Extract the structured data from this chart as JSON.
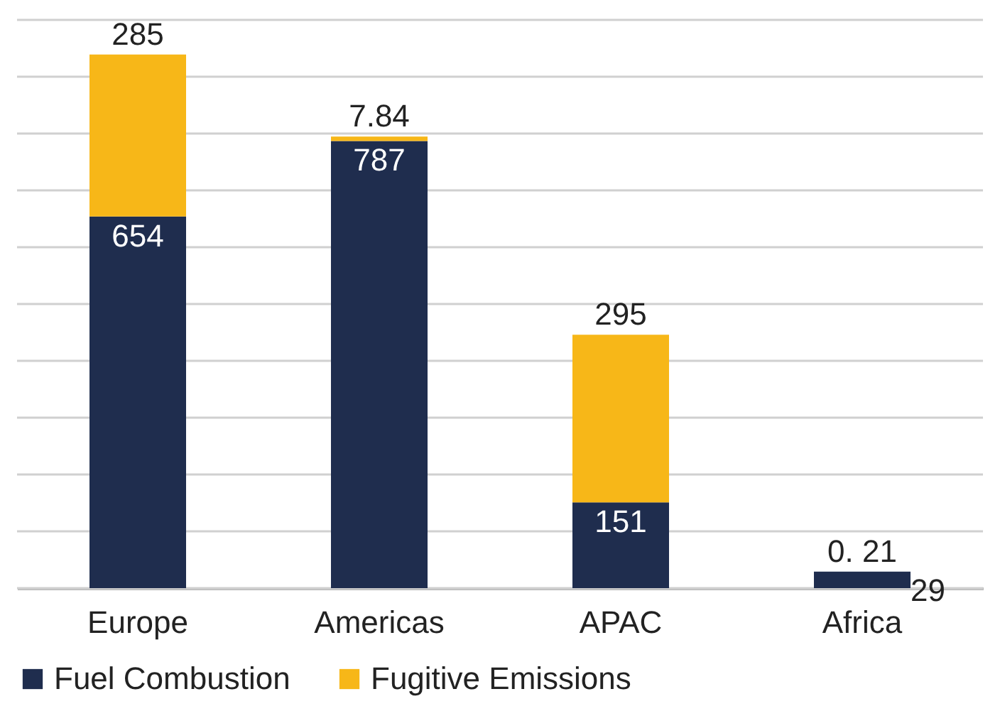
{
  "chart_data": {
    "type": "bar",
    "stacked": true,
    "categories": [
      "Europe",
      "Americas",
      "APAC",
      "Africa"
    ],
    "series": [
      {
        "name": "Fuel Combustion",
        "color": "#1f2d4e",
        "values": [
          654,
          787,
          151,
          29
        ],
        "value_labels": [
          "654",
          "787",
          "151",
          "29"
        ]
      },
      {
        "name": "Fugitive Emissions",
        "color": "#f7b718",
        "values": [
          285,
          7.84,
          295,
          0.21
        ],
        "value_labels": [
          "285",
          "7.84",
          "295",
          "0. 21"
        ]
      }
    ],
    "ylim": [
      0,
      1000
    ],
    "yticks": [
      {
        "value": 0,
        "label": null
      },
      {
        "value": 100,
        "label": null
      },
      {
        "value": 200,
        "label": null
      },
      {
        "value": 300,
        "label": null
      },
      {
        "value": 400,
        "label": null
      },
      {
        "value": 500,
        "label": null
      },
      {
        "value": 600,
        "label": null
      },
      {
        "value": 700,
        "label": null
      },
      {
        "value": 800,
        "label": null
      },
      {
        "value": 900,
        "label": null
      },
      {
        "value": 1000,
        "label": null
      }
    ],
    "grid": "y",
    "legend": "bottom",
    "tick_labels": "x"
  }
}
